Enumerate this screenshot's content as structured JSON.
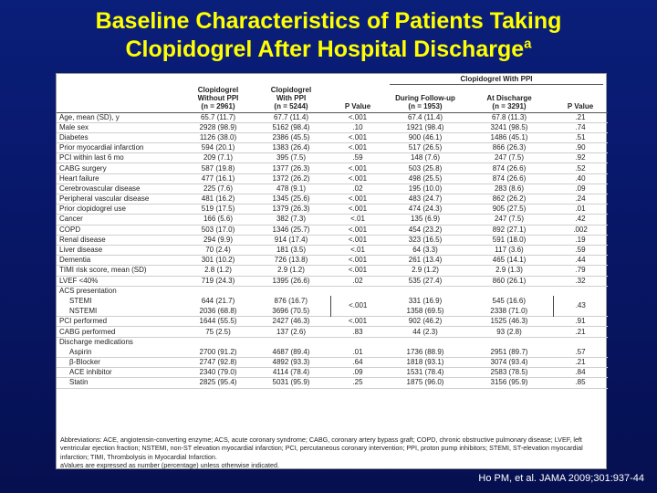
{
  "title": {
    "line1": "Baseline Characteristics of Patients Taking",
    "line2": "Clopidogrel After Hospital Discharge",
    "superscript": "a"
  },
  "table": {
    "group_header": "Clopidogrel With PPI",
    "columns": [
      "",
      "Clopidogrel\nWithout PPI\n(n = 2961)",
      "Clopidogrel\nWith PPI\n(n = 5244)",
      "P Value",
      "During Follow-up\n(n = 1953)",
      "At Discharge\n(n = 3291)",
      "P Value"
    ],
    "rows": [
      [
        "Age, mean (SD), y",
        "65.7 (11.7)",
        "67.7 (11.4)",
        "<.001",
        "67.4 (11.4)",
        "67.8 (11.3)",
        ".21"
      ],
      [
        "Male sex",
        "2928 (98.9)",
        "5162 (98.4)",
        ".10",
        "1921 (98.4)",
        "3241 (98.5)",
        ".74"
      ],
      [
        "Diabetes",
        "1126 (38.0)",
        "2386 (45.5)",
        "<.001",
        "900 (46.1)",
        "1486 (45.1)",
        ".51"
      ],
      [
        "Prior myocardial infarction",
        "594 (20.1)",
        "1383 (26.4)",
        "<.001",
        "517 (26.5)",
        "866 (26.3)",
        ".90"
      ],
      [
        "PCI within last 6 mo",
        "209 (7.1)",
        "395 (7.5)",
        ".59",
        "148 (7.6)",
        "247 (7.5)",
        ".92"
      ],
      [
        "CABG surgery",
        "587 (19.8)",
        "1377 (26.3)",
        "<.001",
        "503 (25.8)",
        "874 (26.6)",
        ".52"
      ],
      [
        "Heart failure",
        "477 (16.1)",
        "1372 (26.2)",
        "<.001",
        "498 (25.5)",
        "874 (26.6)",
        ".40"
      ],
      [
        "Cerebrovascular disease",
        "225 (7.6)",
        "478 (9.1)",
        ".02",
        "195 (10.0)",
        "283 (8.6)",
        ".09"
      ],
      [
        "Peripheral vascular disease",
        "481 (16.2)",
        "1345 (25.6)",
        "<.001",
        "483 (24.7)",
        "862 (26.2)",
        ".24"
      ],
      [
        "Prior clopidogrel use",
        "519 (17.5)",
        "1379 (26.3)",
        "<.001",
        "474 (24.3)",
        "905 (27.5)",
        ".01"
      ],
      [
        "Cancer",
        "166 (5.6)",
        "382 (7.3)",
        "<.01",
        "135 (6.9)",
        "247 (7.5)",
        ".42"
      ],
      [
        "COPD",
        "503 (17.0)",
        "1346 (25.7)",
        "<.001",
        "454 (23.2)",
        "892 (27.1)",
        ".002"
      ],
      [
        "Renal disease",
        "294 (9.9)",
        "914 (17.4)",
        "<.001",
        "323 (16.5)",
        "591 (18.0)",
        ".19"
      ],
      [
        "Liver disease",
        "70 (2.4)",
        "181 (3.5)",
        "<.01",
        "64 (3.3)",
        "117 (3.6)",
        ".59"
      ],
      [
        "Dementia",
        "301 (10.2)",
        "726 (13.8)",
        "<.001",
        "261 (13.4)",
        "465 (14.1)",
        ".44"
      ],
      [
        "TIMI risk score, mean (SD)",
        "2.8 (1.2)",
        "2.9 (1.2)",
        "<.001",
        "2.9 (1.2)",
        "2.9 (1.3)",
        ".79"
      ],
      [
        "LVEF <40%",
        "719 (24.3)",
        "1395 (26.6)",
        ".02",
        "535 (27.4)",
        "860 (26.1)",
        ".32"
      ]
    ],
    "acs": {
      "label": "ACS presentation",
      "stemi": [
        "STEMI",
        "644 (21.7)",
        "876 (16.7)",
        "331 (16.9)",
        "545 (16.6)"
      ],
      "nstemi": [
        "NSTEMI",
        "2036 (68.8)",
        "3696 (70.5)",
        "1358 (69.5)",
        "2338 (71.0)"
      ],
      "p1": "<.001",
      "p2": ".43"
    },
    "rows2": [
      [
        "PCI performed",
        "1644 (55.5)",
        "2427 (46.3)",
        "<.001",
        "902 (46.2)",
        "1525 (46.3)",
        ".91"
      ],
      [
        "CABG performed",
        "75 (2.5)",
        "137 (2.6)",
        ".83",
        "44 (2.3)",
        "93 (2.8)",
        ".21"
      ]
    ],
    "discharge": {
      "label": "Discharge medications",
      "rows": [
        [
          "Aspirin",
          "2700 (91.2)",
          "4687 (89.4)",
          ".01",
          "1736 (88.9)",
          "2951 (89.7)",
          ".57"
        ],
        [
          "β-Blocker",
          "2747 (92.8)",
          "4892 (93.3)",
          ".64",
          "1818 (93.1)",
          "3074 (93.4)",
          ".21"
        ],
        [
          "ACE inhibitor",
          "2340 (79.0)",
          "4114 (78.4)",
          ".09",
          "1531 (78.4)",
          "2583 (78.5)",
          ".84"
        ],
        [
          "Statin",
          "2825 (95.4)",
          "5031 (95.9)",
          ".25",
          "1875 (96.0)",
          "3156 (95.9)",
          ".85"
        ]
      ]
    }
  },
  "footnote": {
    "abbreviations": "Abbreviations: ACE, angiotensin-converting enzyme; ACS, acute coronary syndrome; CABG, coronary artery bypass graft; COPD, chronic obstructive pulmonary disease; LVEF, left ventricular ejection fraction; NSTEMI, non-ST elevation myocardial infarction; PCI, percutaneous coronary intervention; PPI, proton pump inhibitors; STEMI, ST-elevation myocardial infarction; TIMI, Thrombolysis in Myocardial Infarction.",
    "note": "aValues are expressed as number (percentage) unless otherwise indicated."
  },
  "citation": "Ho PM, et al. JAMA 2009;301:937-44"
}
